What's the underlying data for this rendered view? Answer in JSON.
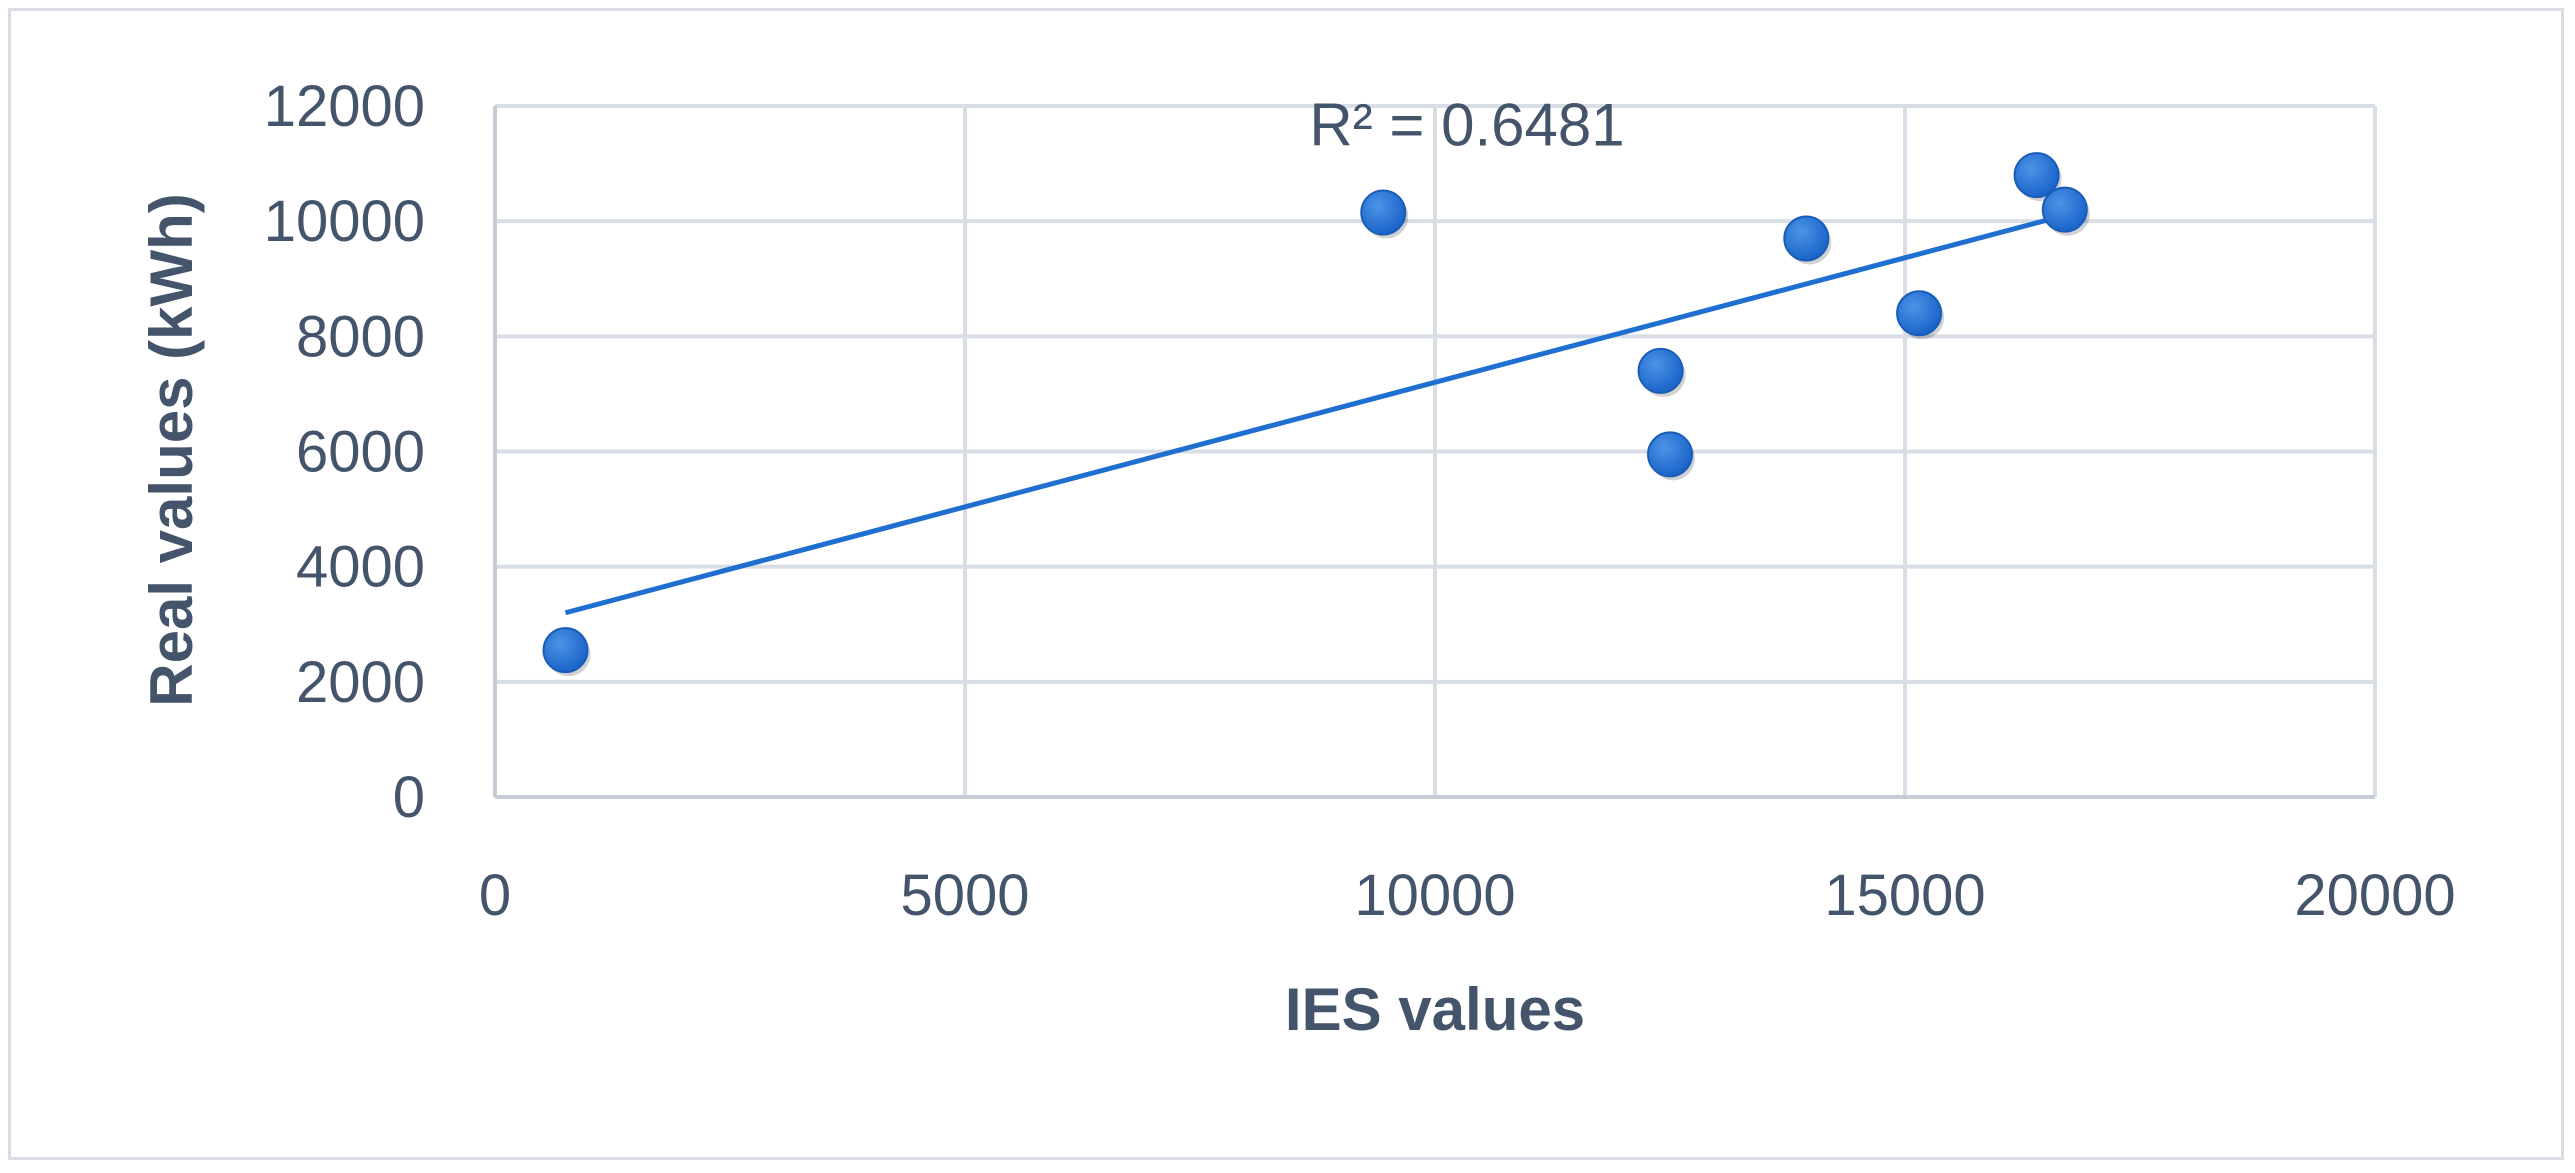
{
  "chart_data": {
    "type": "scatter",
    "xlabel": "IES values",
    "ylabel": "Real values (kWh)",
    "xlim": [
      0,
      20000
    ],
    "ylim": [
      0,
      12000
    ],
    "x_ticks": [
      0,
      5000,
      10000,
      15000,
      20000
    ],
    "y_ticks": [
      0,
      2000,
      4000,
      6000,
      8000,
      10000,
      12000
    ],
    "grid": true,
    "series": [
      {
        "x": [
          750,
          9450,
          12400,
          12500,
          13950,
          15150,
          16400,
          16700
        ],
        "y": [
          2550,
          10150,
          7400,
          5950,
          9700,
          8400,
          10800,
          10200
        ],
        "color": "#1f6fd1"
      }
    ],
    "trendline": {
      "type": "linear",
      "x": [
        750,
        16700
      ],
      "y": [
        3200,
        10100
      ],
      "color": "#1f6fd1"
    },
    "annotations": [
      {
        "text": "R² = 0.6481",
        "x": 13000,
        "y": 11700
      }
    ]
  }
}
